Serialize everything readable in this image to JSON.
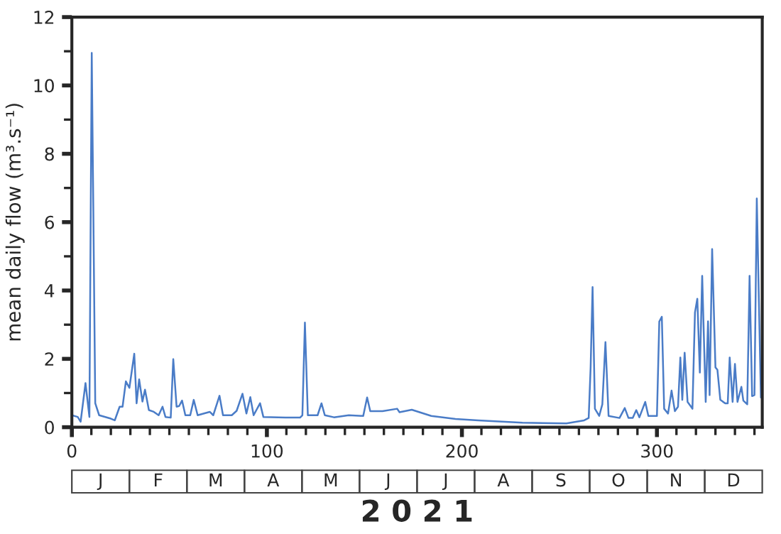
{
  "chart_data": {
    "type": "line",
    "ylabel": "mean daily flow (m³.s⁻¹)",
    "xlim": [
      0,
      354
    ],
    "xticks": [
      0,
      100,
      200,
      300
    ],
    "ylim": [
      0,
      12
    ],
    "yticks": [
      0,
      2,
      4,
      6,
      8,
      10,
      12
    ],
    "grid": false,
    "marker": "none",
    "line_style": "solid",
    "series": [
      {
        "color": "#4a7cc7",
        "x": [
          0,
          3,
          4.5,
          7,
          9,
          10.2,
          12,
          14,
          20,
          22,
          24.5,
          26,
          27.7,
          29.5,
          32,
          33.2,
          34.5,
          36.2,
          37.5,
          39.5,
          42,
          44.5,
          46.5,
          48,
          50.7,
          52,
          53.7,
          55,
          56.5,
          58.2,
          60.7,
          62.5,
          64.5,
          70.7,
          72.5,
          75.7,
          77.5,
          82,
          84.5,
          87.5,
          89.5,
          91.5,
          93.2,
          96.5,
          98.2,
          109.5,
          117,
          118.2,
          119.5,
          121,
          126,
          128,
          129.7,
          134.4,
          142,
          149.4,
          151.4,
          153,
          159.3,
          166.8,
          168,
          174.3,
          184.3,
          196.7,
          208.3,
          231,
          253.6,
          262.7,
          265,
          266,
          267,
          268.2,
          270.4,
          272,
          273.6,
          275.2,
          280.8,
          283.5,
          285.4,
          287.6,
          289.4,
          291,
          294,
          295.6,
          300,
          301.2,
          302.5,
          303.7,
          305.7,
          307.5,
          309.2,
          310.8,
          312,
          313,
          314.2,
          315.7,
          317.5,
          318.2,
          319.5,
          320.7,
          322,
          323.2,
          325,
          326.2,
          327,
          328.3,
          330,
          331,
          332.5,
          335,
          336.3,
          337.3,
          338.8,
          340,
          341.3,
          343.3,
          344.3,
          346.3,
          347.5,
          348.8,
          350,
          351.2,
          353.3
        ],
        "values": [
          0.35,
          0.3,
          0.16,
          1.29,
          0.3,
          10.95,
          0.7,
          0.35,
          0.25,
          0.2,
          0.6,
          0.6,
          1.34,
          1.15,
          2.15,
          0.7,
          1.4,
          0.75,
          1.1,
          0.5,
          0.45,
          0.35,
          0.6,
          0.3,
          0.28,
          1.99,
          0.6,
          0.62,
          0.78,
          0.35,
          0.35,
          0.8,
          0.35,
          0.45,
          0.35,
          0.92,
          0.35,
          0.35,
          0.48,
          0.98,
          0.4,
          0.88,
          0.35,
          0.7,
          0.3,
          0.28,
          0.28,
          0.35,
          3.06,
          0.35,
          0.35,
          0.7,
          0.35,
          0.29,
          0.35,
          0.33,
          0.87,
          0.47,
          0.47,
          0.54,
          0.44,
          0.51,
          0.33,
          0.24,
          0.2,
          0.13,
          0.11,
          0.2,
          0.27,
          1.75,
          4.1,
          0.54,
          0.33,
          0.67,
          2.49,
          0.33,
          0.27,
          0.56,
          0.27,
          0.27,
          0.5,
          0.29,
          0.74,
          0.33,
          0.33,
          3.09,
          3.23,
          0.54,
          0.4,
          1.07,
          0.47,
          0.6,
          2.04,
          0.8,
          2.18,
          0.74,
          0.6,
          0.54,
          3.36,
          3.76,
          1.6,
          4.43,
          0.74,
          3.1,
          0.94,
          5.21,
          1.75,
          1.68,
          0.8,
          0.7,
          0.7,
          2.04,
          0.74,
          1.85,
          0.74,
          1.18,
          0.78,
          0.67,
          4.43,
          0.91,
          0.94,
          6.69,
          0.87
        ]
      }
    ],
    "annotations": [
      "J",
      "F",
      "M",
      "A",
      "M",
      "J",
      "J",
      "A",
      "S",
      "O",
      "N",
      "D",
      "2 0 2 1"
    ]
  }
}
